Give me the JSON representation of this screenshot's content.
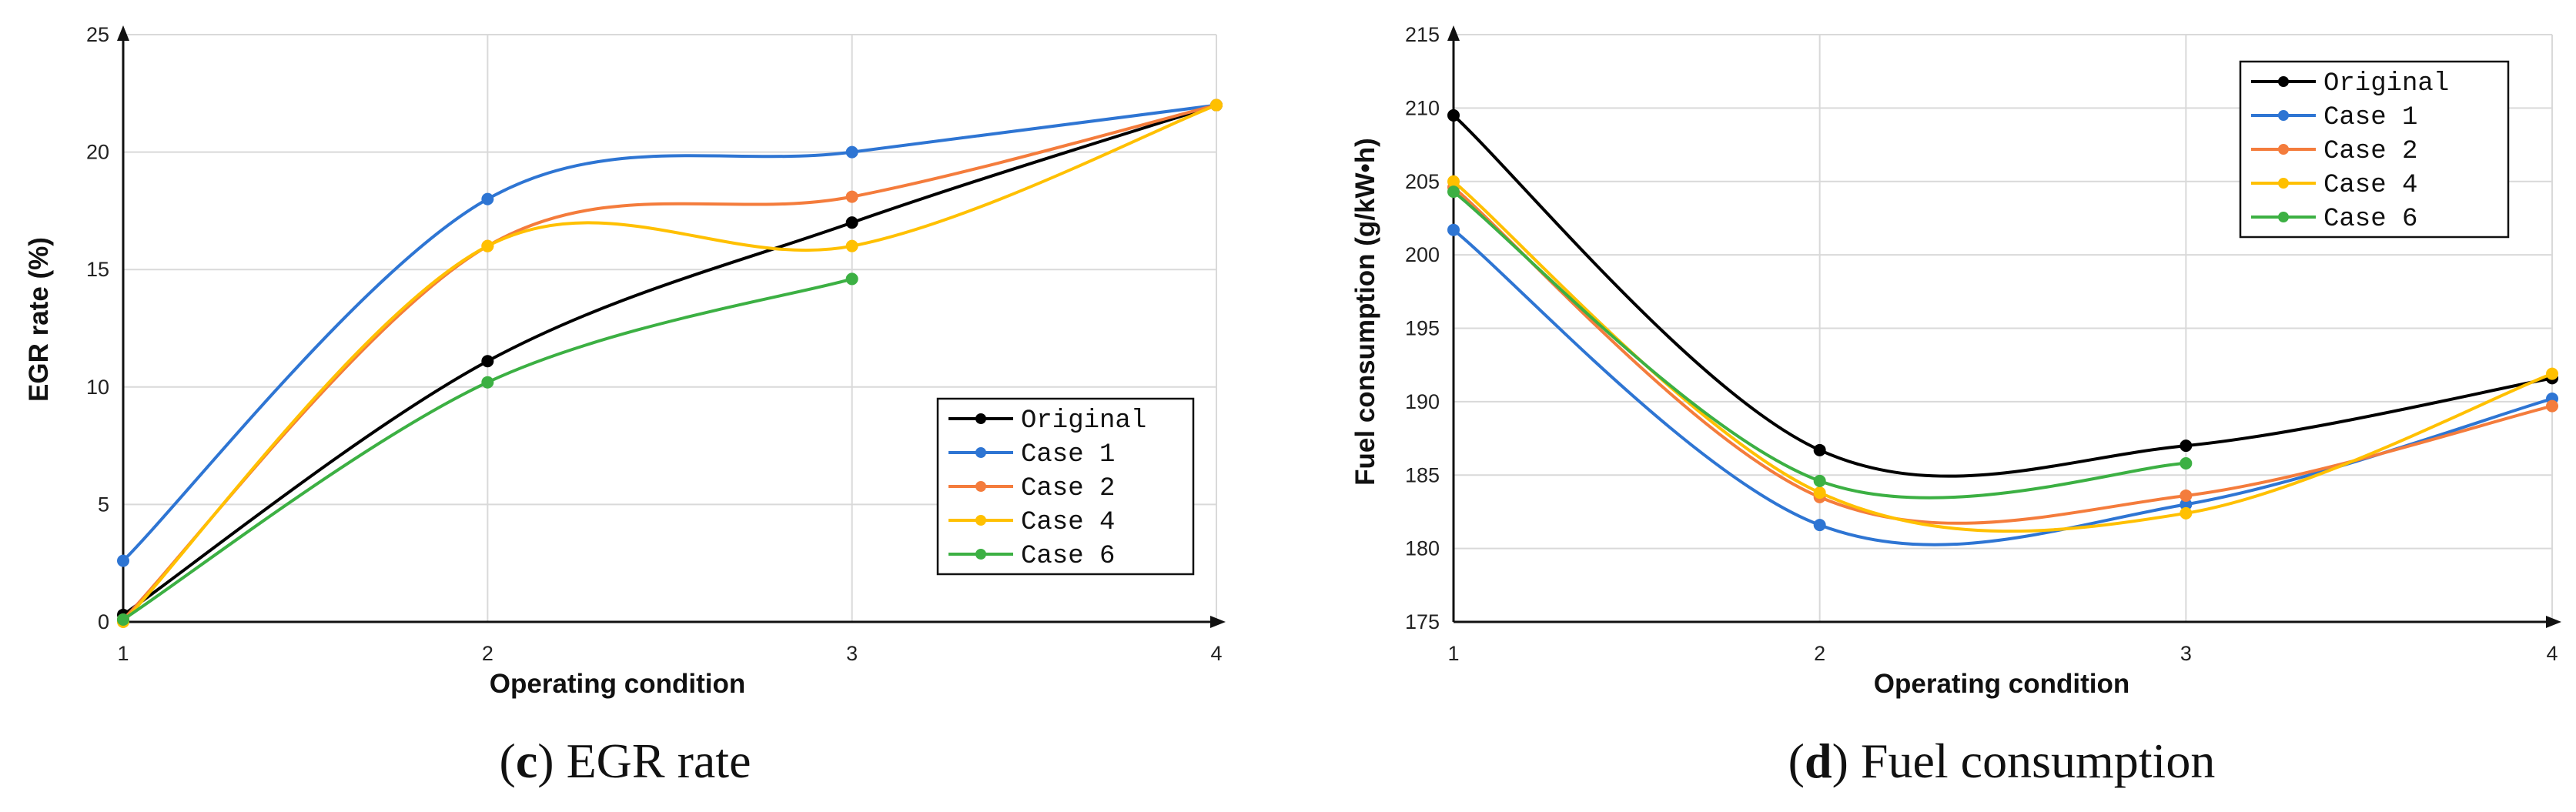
{
  "chart_data": [
    {
      "type": "line",
      "caption_letter": "c",
      "caption_text": " EGR rate",
      "xlabel": "Operating condition",
      "ylabel": "EGR rate (%)",
      "categories": [
        "1",
        "2",
        "3",
        "4"
      ],
      "x_ticks": [
        "1",
        "2",
        "3",
        "4"
      ],
      "y_ticks": [
        "0",
        "5",
        "10",
        "15",
        "20",
        "25"
      ],
      "ylim": [
        0,
        25
      ],
      "grid": true,
      "legend_position": "bottom-right",
      "series": [
        {
          "name": "Original",
          "color": "#000000",
          "values": [
            0.3,
            11.1,
            17.0,
            22.0
          ]
        },
        {
          "name": "Case 1",
          "color": "#2e75d3",
          "values": [
            2.6,
            18.0,
            20.0,
            22.0
          ]
        },
        {
          "name": "Case 2",
          "color": "#f47c3c",
          "values": [
            0.1,
            16.0,
            18.1,
            22.0
          ]
        },
        {
          "name": "Case 4",
          "color": "#ffc000",
          "values": [
            0.0,
            16.0,
            16.0,
            22.0
          ]
        },
        {
          "name": "Case 6",
          "color": "#3cb043",
          "values": [
            0.1,
            10.2,
            14.6,
            null
          ]
        }
      ]
    },
    {
      "type": "line",
      "caption_letter": "d",
      "caption_text": " Fuel consumption",
      "xlabel": "Operating condition",
      "ylabel": "Fuel consumption (g/kW•h)",
      "categories": [
        "1",
        "2",
        "3",
        "4"
      ],
      "x_ticks": [
        "1",
        "2",
        "3",
        "4"
      ],
      "y_ticks": [
        "175",
        "180",
        "185",
        "190",
        "195",
        "200",
        "205",
        "210",
        "215"
      ],
      "ylim": [
        175,
        215
      ],
      "grid": true,
      "legend_position": "top-right",
      "series": [
        {
          "name": "Original",
          "color": "#000000",
          "values": [
            209.5,
            186.7,
            187.0,
            191.6
          ]
        },
        {
          "name": "Case 1",
          "color": "#2e75d3",
          "values": [
            201.7,
            181.6,
            183.0,
            190.2
          ]
        },
        {
          "name": "Case 2",
          "color": "#f47c3c",
          "values": [
            204.6,
            183.5,
            183.6,
            189.7
          ]
        },
        {
          "name": "Case 4",
          "color": "#ffc000",
          "values": [
            205.0,
            183.8,
            182.4,
            191.9
          ]
        },
        {
          "name": "Case 6",
          "color": "#3cb043",
          "values": [
            204.3,
            184.6,
            185.8,
            null
          ]
        }
      ]
    }
  ]
}
